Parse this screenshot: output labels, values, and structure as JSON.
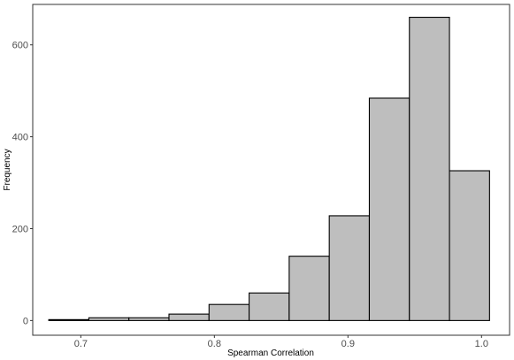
{
  "chart_data": {
    "type": "bar",
    "xlabel": "Spearman Correlation",
    "ylabel": "Frequency",
    "xlim": [
      0.664,
      1.021
    ],
    "ylim": [
      -32,
      688
    ],
    "x_ticks": [
      0.7,
      0.8,
      0.9,
      1.0
    ],
    "x_tick_labels": [
      "0.7",
      "0.8",
      "0.9",
      "1.0"
    ],
    "y_ticks": [
      0,
      200,
      400,
      600
    ],
    "y_tick_labels": [
      "0",
      "200",
      "400",
      "600"
    ],
    "bins": [
      {
        "x0": 0.676,
        "x1": 0.706,
        "count": 2
      },
      {
        "x0": 0.706,
        "x1": 0.736,
        "count": 6
      },
      {
        "x0": 0.736,
        "x1": 0.766,
        "count": 6
      },
      {
        "x0": 0.766,
        "x1": 0.796,
        "count": 14
      },
      {
        "x0": 0.796,
        "x1": 0.826,
        "count": 35
      },
      {
        "x0": 0.826,
        "x1": 0.856,
        "count": 60
      },
      {
        "x0": 0.856,
        "x1": 0.886,
        "count": 140
      },
      {
        "x0": 0.886,
        "x1": 0.916,
        "count": 228
      },
      {
        "x0": 0.916,
        "x1": 0.946,
        "count": 484
      },
      {
        "x0": 0.946,
        "x1": 0.976,
        "count": 660
      },
      {
        "x0": 0.976,
        "x1": 1.006,
        "count": 326
      }
    ],
    "bar_fill": "#bebebe",
    "bar_stroke": "#000000",
    "grid": false,
    "legend": "none"
  }
}
